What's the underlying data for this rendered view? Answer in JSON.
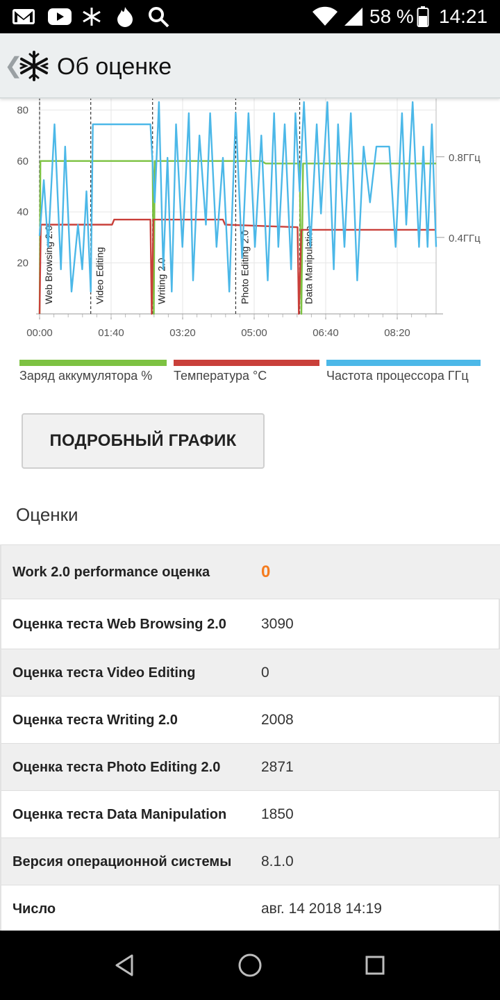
{
  "status_bar": {
    "battery": "58 %",
    "time": "14:21",
    "icons": [
      "gmail-icon",
      "youtube-icon",
      "snowflake-icon",
      "fire-icon",
      "search-icon",
      "wifi-icon",
      "signal-icon",
      "battery-icon"
    ]
  },
  "app_bar": {
    "back_glyph": "❮",
    "title": "Об оценке"
  },
  "chart_data": {
    "type": "line",
    "x_ticks": [
      "00:00",
      "01:40",
      "03:20",
      "05:00",
      "06:40",
      "08:20"
    ],
    "y_ticks_left": [
      80,
      60,
      40,
      20
    ],
    "y_ticks_right": [
      "0.8ГГц",
      "0.4ГГц"
    ],
    "ylim": [
      0,
      85
    ],
    "segments": [
      {
        "label": "Web Browsing 2.0",
        "t": 0
      },
      {
        "label": "Video Editing",
        "t": 1.2
      },
      {
        "label": "Writing 2.0",
        "t": 2.65
      },
      {
        "label": "Photo Editing 2.0",
        "t": 4.6
      },
      {
        "label": "Data Manipulation",
        "t": 6.1
      }
    ],
    "series": [
      {
        "name": "Заряд аккумулятора %",
        "color": "#7dc242",
        "points": [
          [
            0,
            0
          ],
          [
            0.02,
            60
          ],
          [
            2.65,
            60
          ],
          [
            2.68,
            0
          ],
          [
            2.7,
            60
          ],
          [
            5.2,
            60
          ],
          [
            5.3,
            59
          ],
          [
            6.1,
            59
          ],
          [
            6.14,
            0
          ],
          [
            6.18,
            59
          ],
          [
            9.3,
            59
          ]
        ]
      },
      {
        "name": "Температура °C",
        "color": "#c9403a",
        "points": [
          [
            0,
            0
          ],
          [
            0.03,
            35
          ],
          [
            1.7,
            35
          ],
          [
            1.75,
            37
          ],
          [
            2.6,
            37
          ],
          [
            2.63,
            0
          ],
          [
            2.67,
            37
          ],
          [
            4.3,
            37
          ],
          [
            4.35,
            35
          ],
          [
            6.05,
            34
          ],
          [
            6.08,
            0
          ],
          [
            6.14,
            33
          ],
          [
            9.3,
            33
          ]
        ]
      },
      {
        "name": "Частота процессора ГГц",
        "color": "#4cb8e8",
        "points": [
          [
            0,
            0.35
          ],
          [
            0.1,
            0.6
          ],
          [
            0.2,
            0.3
          ],
          [
            0.35,
            0.85
          ],
          [
            0.5,
            0.2
          ],
          [
            0.6,
            0.75
          ],
          [
            0.75,
            0.1
          ],
          [
            0.9,
            0.4
          ],
          [
            1.0,
            0.2
          ],
          [
            1.1,
            0.55
          ],
          [
            1.2,
            0.1
          ],
          [
            1.25,
            0.85
          ],
          [
            1.4,
            0.85
          ],
          [
            1.6,
            0.85
          ],
          [
            2.0,
            0.85
          ],
          [
            2.3,
            0.85
          ],
          [
            2.6,
            0.85
          ],
          [
            2.7,
            0.5
          ],
          [
            2.8,
            0.95
          ],
          [
            2.9,
            0.2
          ],
          [
            3.0,
            0.7
          ],
          [
            3.1,
            0.1
          ],
          [
            3.2,
            0.85
          ],
          [
            3.35,
            0.3
          ],
          [
            3.5,
            0.9
          ],
          [
            3.6,
            0.15
          ],
          [
            3.75,
            0.8
          ],
          [
            3.9,
            0.4
          ],
          [
            4.0,
            0.9
          ],
          [
            4.15,
            0.3
          ],
          [
            4.3,
            0.7
          ],
          [
            4.45,
            0.1
          ],
          [
            4.6,
            0.9
          ],
          [
            4.75,
            0.25
          ],
          [
            4.9,
            0.9
          ],
          [
            5.05,
            0.3
          ],
          [
            5.2,
            0.8
          ],
          [
            5.35,
            0.15
          ],
          [
            5.5,
            0.9
          ],
          [
            5.6,
            0.3
          ],
          [
            5.75,
            0.85
          ],
          [
            5.9,
            0.2
          ],
          [
            6.0,
            0.9
          ],
          [
            6.1,
            0.55
          ],
          [
            6.2,
            0.95
          ],
          [
            6.35,
            0.3
          ],
          [
            6.5,
            0.85
          ],
          [
            6.6,
            0.45
          ],
          [
            6.75,
            0.95
          ],
          [
            6.9,
            0.2
          ],
          [
            7.0,
            0.85
          ],
          [
            7.15,
            0.3
          ],
          [
            7.3,
            0.9
          ],
          [
            7.45,
            0.15
          ],
          [
            7.6,
            0.75
          ],
          [
            7.75,
            0.5
          ],
          [
            7.9,
            0.75
          ],
          [
            8.05,
            0.75
          ],
          [
            8.2,
            0.75
          ],
          [
            8.35,
            0.3
          ],
          [
            8.5,
            0.9
          ],
          [
            8.6,
            0.4
          ],
          [
            8.75,
            0.95
          ],
          [
            8.9,
            0.3
          ],
          [
            9.0,
            0.75
          ],
          [
            9.1,
            0.3
          ],
          [
            9.2,
            0.85
          ],
          [
            9.3,
            0.3
          ]
        ]
      }
    ],
    "x_range": [
      0,
      9.3
    ],
    "grid": true
  },
  "legend": [
    {
      "label": "Заряд аккумулятора %",
      "color": "#7dc242"
    },
    {
      "label": "Температура °C",
      "color": "#c9403a"
    },
    {
      "label": "Частота процессора ГГц",
      "color": "#4cb8e8"
    }
  ],
  "detail_button": "ПОДРОБНЫЙ ГРАФИК",
  "section_title": "Оценки",
  "scores": [
    {
      "label": "Work 2.0 performance оценка",
      "value": "0",
      "accent": true
    },
    {
      "label": "Оценка теста Web Browsing 2.0",
      "value": "3090"
    },
    {
      "label": "Оценка теста Video Editing",
      "value": "0"
    },
    {
      "label": "Оценка теста Writing 2.0",
      "value": "2008"
    },
    {
      "label": "Оценка теста Photo Editing 2.0",
      "value": "2871"
    },
    {
      "label": "Оценка теста Data Manipulation",
      "value": "1850"
    },
    {
      "label": "Версия операционной системы",
      "value": "8.1.0"
    },
    {
      "label": "Число",
      "value": "авг. 14 2018 14:19"
    }
  ],
  "colors": {
    "accent": "#f57c1f",
    "appbar_bg": "#eceff0"
  },
  "nav": [
    "back-icon",
    "home-icon",
    "recents-icon"
  ]
}
